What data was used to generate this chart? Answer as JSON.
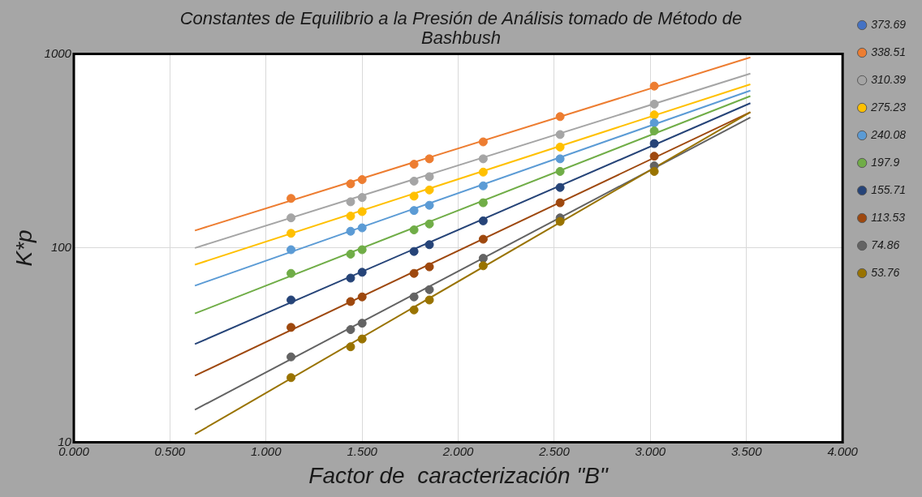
{
  "chart_data": {
    "type": "scatter",
    "title": "Constantes de Equilibrio a la Presión de Análisis tomado de Método de Bashbush",
    "xlabel": "Factor de  caracterización \"B\"",
    "ylabel": "K*p",
    "log": "y",
    "grid": true,
    "marker": "circle",
    "legend": "right",
    "xlim": [
      0,
      4
    ],
    "xticks": [
      {
        "value": 0,
        "label": "0.000"
      },
      {
        "value": 0.5,
        "label": "0.500"
      },
      {
        "value": 1,
        "label": "1.000"
      },
      {
        "value": 1.5,
        "label": "1.500"
      },
      {
        "value": 2,
        "label": "2.000"
      },
      {
        "value": 2.5,
        "label": "2.500"
      },
      {
        "value": 3,
        "label": "3.000"
      },
      {
        "value": 3.5,
        "label": "3.500"
      },
      {
        "value": 4,
        "label": "4.000"
      }
    ],
    "ylim": [
      10,
      1000
    ],
    "yticks": [
      10,
      100,
      1000
    ],
    "series": [
      {
        "name": "373.69",
        "color": "#4472c4"
      },
      {
        "name": "338.51",
        "color": "#ed7d31",
        "x": [
          1.13,
          1.44,
          1.5,
          1.77,
          1.85,
          2.13,
          2.53,
          3.02
        ],
        "values": [
          180,
          214,
          225,
          270,
          288,
          352,
          475,
          682
        ]
      },
      {
        "name": "310.39",
        "color": "#a5a5a5",
        "x": [
          1.13,
          1.44,
          1.5,
          1.77,
          1.85,
          2.13,
          2.53,
          3.02
        ],
        "values": [
          143,
          173,
          182,
          221,
          233,
          288,
          384,
          551
        ]
      },
      {
        "name": "275.23",
        "color": "#ffc000",
        "x": [
          1.13,
          1.44,
          1.5,
          1.77,
          1.85,
          2.13,
          2.53,
          3.02
        ],
        "values": [
          119,
          146,
          154,
          185,
          199,
          246,
          331,
          485
        ]
      },
      {
        "name": "240.08",
        "color": "#5b9bd5",
        "x": [
          1.13,
          1.44,
          1.5,
          1.77,
          1.85,
          2.13,
          2.53,
          3.02
        ],
        "values": [
          98,
          122,
          127,
          156,
          166,
          209,
          288,
          441
        ]
      },
      {
        "name": "197.9",
        "color": "#70ad47",
        "x": [
          1.13,
          1.44,
          1.5,
          1.77,
          1.85,
          2.13,
          2.53,
          3.02
        ],
        "values": [
          74,
          93,
          98,
          124,
          133,
          171,
          248,
          401
        ]
      },
      {
        "name": "155.71",
        "color": "#264478",
        "x": [
          1.13,
          1.44,
          1.5,
          1.77,
          1.85,
          2.13,
          2.53,
          3.02
        ],
        "values": [
          54,
          70,
          75,
          96,
          104,
          138,
          205,
          345
        ]
      },
      {
        "name": "113.53",
        "color": "#9e480e",
        "x": [
          1.13,
          1.44,
          1.5,
          1.77,
          1.85,
          2.13,
          2.53,
          3.02
        ],
        "values": [
          39,
          53,
          56,
          74,
          80,
          111,
          171,
          297
        ]
      },
      {
        "name": "74.86",
        "color": "#636363",
        "x": [
          1.13,
          1.44,
          1.5,
          1.77,
          1.85,
          2.13,
          2.53,
          3.02
        ],
        "values": [
          27.5,
          38,
          41,
          56,
          61,
          88.5,
          143,
          265
        ]
      },
      {
        "name": "53.76",
        "color": "#997300",
        "x": [
          1.13,
          1.44,
          1.5,
          1.77,
          1.85,
          2.13,
          2.53,
          3.02
        ],
        "values": [
          21.5,
          31,
          34,
          48,
          54,
          81,
          137,
          248
        ]
      },
      {
        "type": "line",
        "marker": "none",
        "color": "#ed7d31",
        "x": [
          0.63,
          3.52
        ],
        "values": [
          123,
          959
        ]
      },
      {
        "type": "line",
        "marker": "none",
        "color": "#a5a5a5",
        "x": [
          0.63,
          3.52
        ],
        "values": [
          100,
          791
        ]
      },
      {
        "type": "line",
        "marker": "none",
        "color": "#ffc000",
        "x": [
          0.63,
          3.52
        ],
        "values": [
          82,
          697
        ]
      },
      {
        "type": "line",
        "marker": "none",
        "color": "#5b9bd5",
        "x": [
          0.63,
          3.52
        ],
        "values": [
          64,
          647
        ]
      },
      {
        "type": "line",
        "marker": "none",
        "color": "#70ad47",
        "x": [
          0.63,
          3.52
        ],
        "values": [
          46,
          606
        ]
      },
      {
        "type": "line",
        "marker": "none",
        "color": "#264478",
        "x": [
          0.63,
          3.52
        ],
        "values": [
          32,
          557
        ]
      },
      {
        "type": "line",
        "marker": "none",
        "color": "#9e480e",
        "x": [
          0.63,
          3.52
        ],
        "values": [
          22,
          501
        ]
      },
      {
        "type": "line",
        "marker": "none",
        "color": "#636363",
        "x": [
          0.63,
          3.52
        ],
        "values": [
          14.7,
          470
        ]
      },
      {
        "type": "line",
        "marker": "none",
        "color": "#997300",
        "x": [
          0.63,
          3.52
        ],
        "values": [
          11,
          501
        ]
      }
    ]
  }
}
